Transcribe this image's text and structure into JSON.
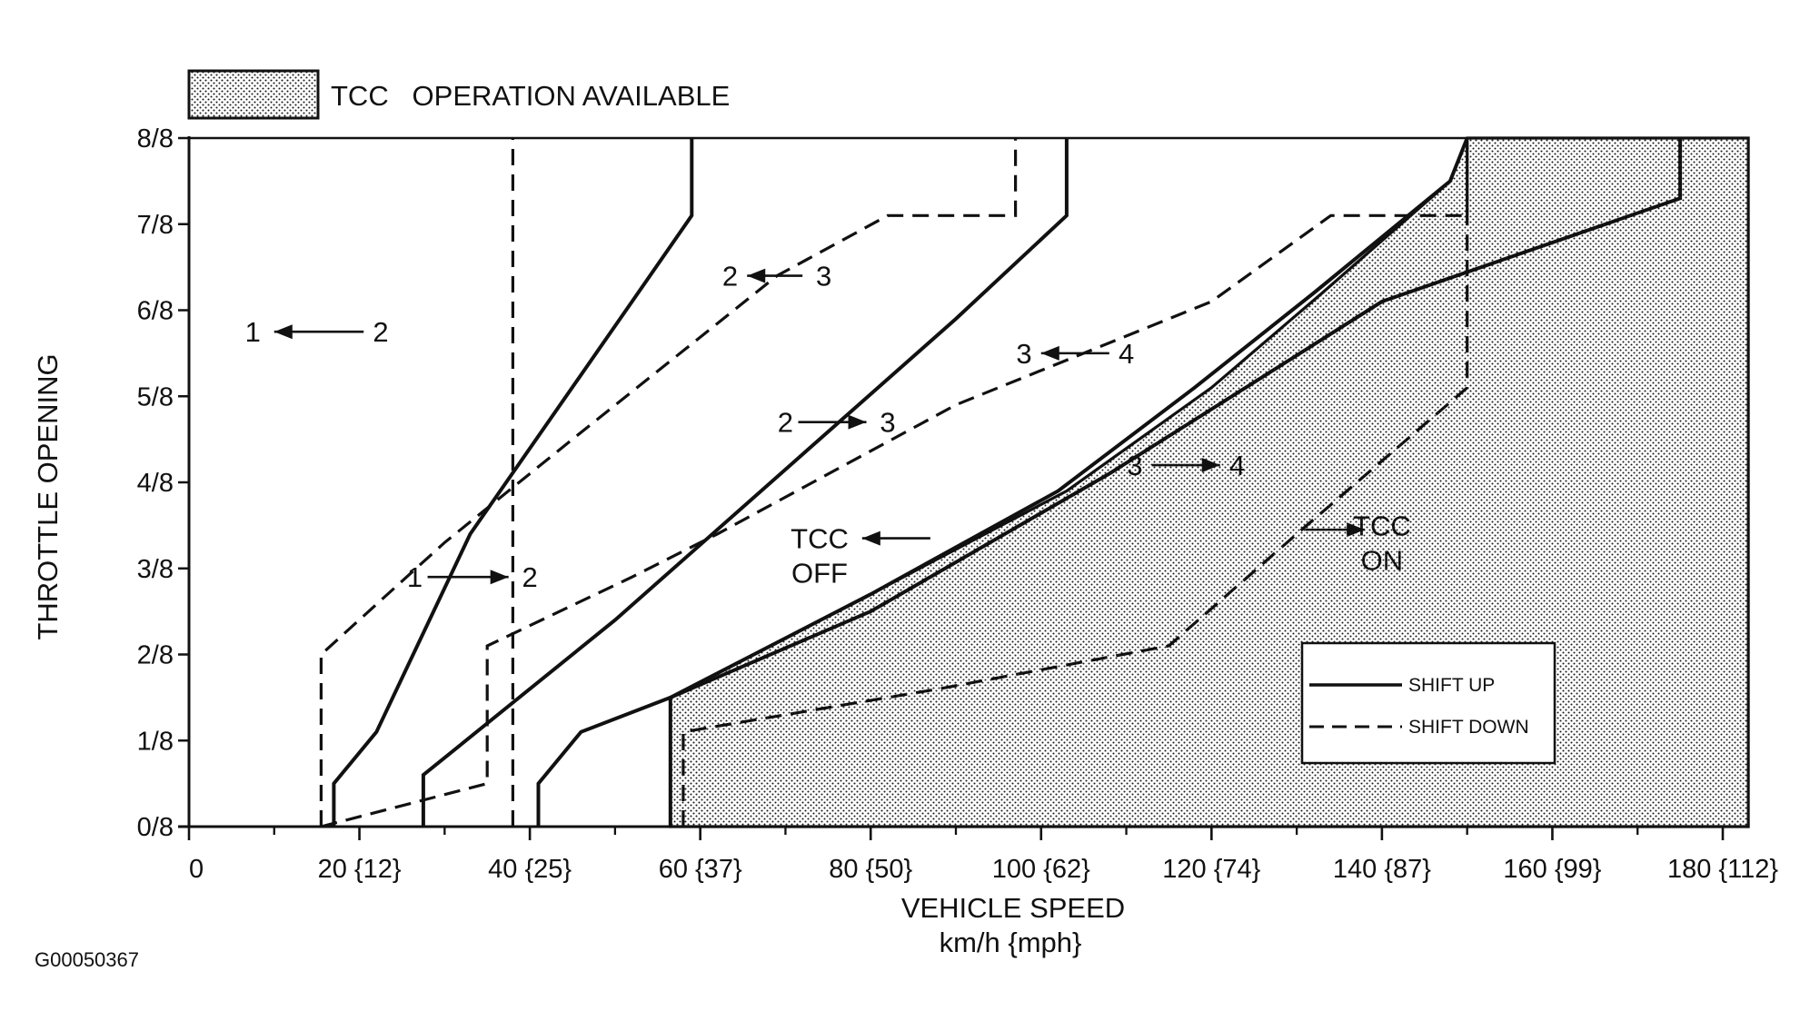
{
  "chart_data": {
    "type": "line",
    "legend_top": {
      "swatch": "dotted",
      "label": "TCC   OPERATION AVAILABLE"
    },
    "xlabel": [
      "VEHICLE SPEED",
      "km/h {mph}"
    ],
    "ylabel": "THROTTLE OPENING",
    "xlim": [
      0,
      183
    ],
    "ylim": [
      0,
      8
    ],
    "x_ticks": [
      {
        "value": 0,
        "label": "0"
      },
      {
        "value": 20,
        "label": "20 {12}"
      },
      {
        "value": 40,
        "label": "40 {25}"
      },
      {
        "value": 60,
        "label": "60 {37}"
      },
      {
        "value": 80,
        "label": "80 {50}"
      },
      {
        "value": 100,
        "label": "100 {62}"
      },
      {
        "value": 120,
        "label": "120 {74}"
      },
      {
        "value": 140,
        "label": "140 {87}"
      },
      {
        "value": 160,
        "label": "160 {99}"
      },
      {
        "value": 180,
        "label": "180 {112}"
      }
    ],
    "y_ticks": [
      {
        "value": 0,
        "label": "0/8"
      },
      {
        "value": 1,
        "label": "1/8"
      },
      {
        "value": 2,
        "label": "2/8"
      },
      {
        "value": 3,
        "label": "3/8"
      },
      {
        "value": 4,
        "label": "4/8"
      },
      {
        "value": 5,
        "label": "5/8"
      },
      {
        "value": 6,
        "label": "6/8"
      },
      {
        "value": 7,
        "label": "7/8"
      },
      {
        "value": 8,
        "label": "8/8"
      }
    ],
    "tcc_region": [
      [
        56.5,
        0
      ],
      [
        56.5,
        1.5
      ],
      [
        80,
        2.7
      ],
      [
        103,
        3.9
      ],
      [
        120,
        5.1
      ],
      [
        133,
        6.2
      ],
      [
        148,
        7.5
      ],
      [
        150,
        8.6
      ],
      [
        183,
        8.6
      ],
      [
        183,
        0
      ]
    ],
    "series": [
      {
        "name": "SHIFT UP",
        "style": "solid",
        "points": [
          [
            17,
            0
          ],
          [
            17,
            0.5
          ],
          [
            22,
            1.1
          ],
          [
            33,
            3.4
          ],
          [
            52,
            6.1
          ],
          [
            59,
            7.1
          ],
          [
            59,
            8
          ]
        ]
      },
      {
        "name": "SHIFT DOWN",
        "style": "dashed",
        "points": [
          [
            15.5,
            0
          ],
          [
            15.5,
            2
          ],
          [
            30,
            3.3
          ],
          [
            45,
            4.5
          ],
          [
            69,
            6.4
          ],
          [
            82,
            7.1
          ],
          [
            97,
            7.1
          ],
          [
            97,
            8
          ]
        ]
      },
      {
        "name": "SHIFT DOWN",
        "style": "dashed",
        "points": [
          [
            38,
            0
          ],
          [
            38,
            8
          ]
        ]
      },
      {
        "name": "SHIFT UP",
        "style": "solid",
        "points": [
          [
            27.5,
            0
          ],
          [
            27.5,
            0.6
          ],
          [
            50,
            2.4
          ],
          [
            66,
            3.8
          ],
          [
            90,
            5.9
          ],
          [
            103,
            7.1
          ],
          [
            103,
            8
          ]
        ]
      },
      {
        "name": "SHIFT DOWN",
        "style": "dashed",
        "points": [
          [
            15.5,
            0
          ],
          [
            35,
            0.5
          ],
          [
            35,
            2.1
          ],
          [
            52,
            2.9
          ],
          [
            62,
            3.4
          ],
          [
            90,
            4.9
          ],
          [
            120,
            6.1
          ],
          [
            134,
            7.1
          ],
          [
            150,
            7.1
          ],
          [
            150,
            8
          ]
        ]
      },
      {
        "name": "SHIFT UP",
        "style": "solid",
        "points": [
          [
            41,
            0
          ],
          [
            41,
            0.5
          ],
          [
            46,
            1.1
          ],
          [
            56.5,
            1.5
          ],
          [
            80,
            2.7
          ],
          [
            102,
            3.9
          ],
          [
            118,
            5.1
          ],
          [
            132,
            6.2
          ],
          [
            148,
            7.5
          ],
          [
            150,
            8
          ]
        ]
      },
      {
        "name": "SHIFT UP",
        "style": "solid",
        "points": [
          [
            56.5,
            0
          ],
          [
            56.5,
            1.5
          ],
          [
            80,
            2.5
          ],
          [
            108,
            4.1
          ],
          [
            140,
            6.1
          ],
          [
            175,
            7.3
          ],
          [
            175,
            8
          ]
        ]
      },
      {
        "name": "SHIFT DOWN",
        "style": "dashed",
        "points": [
          [
            58,
            0
          ],
          [
            58,
            1.1
          ],
          [
            88,
            1.6
          ],
          [
            115,
            2.1
          ],
          [
            130,
            3.4
          ],
          [
            150,
            5.1
          ],
          [
            150,
            8
          ]
        ]
      }
    ],
    "annotations": [
      {
        "text": "1",
        "x": 7.5,
        "y": 5.75
      },
      {
        "text": "2",
        "x": 22.5,
        "y": 5.75
      },
      {
        "text": "2",
        "x": 63.5,
        "y": 6.4
      },
      {
        "text": "3",
        "x": 74.5,
        "y": 6.4
      },
      {
        "text": "3",
        "x": 98,
        "y": 5.5
      },
      {
        "text": "4",
        "x": 110,
        "y": 5.5
      },
      {
        "text": "2",
        "x": 70,
        "y": 4.7
      },
      {
        "text": "3",
        "x": 82,
        "y": 4.7
      },
      {
        "text": "3",
        "x": 111,
        "y": 4.2
      },
      {
        "text": "4",
        "x": 123,
        "y": 4.2
      },
      {
        "text": "1",
        "x": 26.5,
        "y": 2.9
      },
      {
        "text": "2",
        "x": 40,
        "y": 2.9
      },
      {
        "text": "TCC",
        "x": 74,
        "y": 3.35
      },
      {
        "text": "OFF",
        "x": 74,
        "y": 2.95
      },
      {
        "text": "TCC",
        "x": 140,
        "y": 3.5
      },
      {
        "text": "ON",
        "x": 140,
        "y": 3.1
      }
    ],
    "arrows": [
      {
        "from": [
          20.5,
          5.75
        ],
        "to": [
          10,
          5.75
        ]
      },
      {
        "from": [
          72,
          6.4
        ],
        "to": [
          65.5,
          6.4
        ]
      },
      {
        "from": [
          108,
          5.5
        ],
        "to": [
          100,
          5.5
        ]
      },
      {
        "from": [
          71.5,
          4.7
        ],
        "to": [
          79.5,
          4.7
        ]
      },
      {
        "from": [
          113,
          4.2
        ],
        "to": [
          121,
          4.2
        ]
      },
      {
        "from": [
          28,
          2.9
        ],
        "to": [
          37.5,
          2.9
        ]
      },
      {
        "from": [
          87,
          3.35
        ],
        "to": [
          79,
          3.35
        ]
      },
      {
        "from": [
          131,
          3.45
        ],
        "to": [
          138,
          3.45
        ]
      }
    ],
    "legend": {
      "placement": "bottom-right",
      "entries": [
        {
          "label": "SHIFT UP",
          "style": "solid"
        },
        {
          "label": "SHIFT DOWN",
          "style": "dashed"
        }
      ]
    }
  },
  "figure_id": "G00050367"
}
